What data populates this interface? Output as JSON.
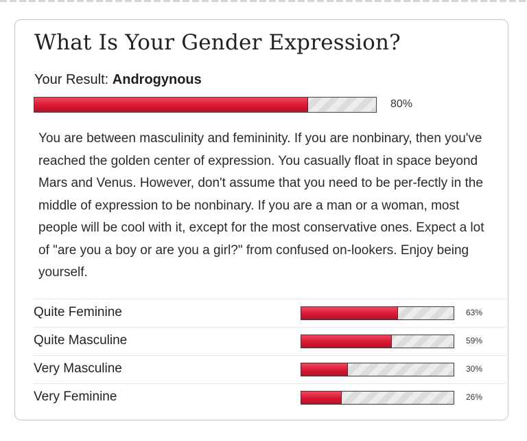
{
  "quiz": {
    "title": "What Is Your Gender Expression?",
    "result_prefix": "Your Result: ",
    "result_value": "Androgynous",
    "result_percent_label": "80%",
    "result_percent": 80,
    "description": "You are between masculinity and femininity. If you are nonbinary, then you've reached the golden center of expression. You casually float in space beyond Mars and Venus. However, don't assume that you need to be per-fectly in the middle of expression to be nonbinary. If you are a man or a woman, most people will be cool with it, except for the most conservative ones. Expect a lot of \"are you a boy or are you a girl?\" from confused on-lookers. Enjoy being yourself."
  },
  "other_results": [
    {
      "label": "Quite Feminine",
      "percent": 63,
      "percent_label": "63%"
    },
    {
      "label": "Quite Masculine",
      "percent": 59,
      "percent_label": "59%"
    },
    {
      "label": "Very Masculine",
      "percent": 30,
      "percent_label": "30%"
    },
    {
      "label": "Very Feminine",
      "percent": 26,
      "percent_label": "26%"
    }
  ],
  "colors": {
    "bar_fill": "#d81733",
    "bar_track": "#e4e4e4"
  }
}
